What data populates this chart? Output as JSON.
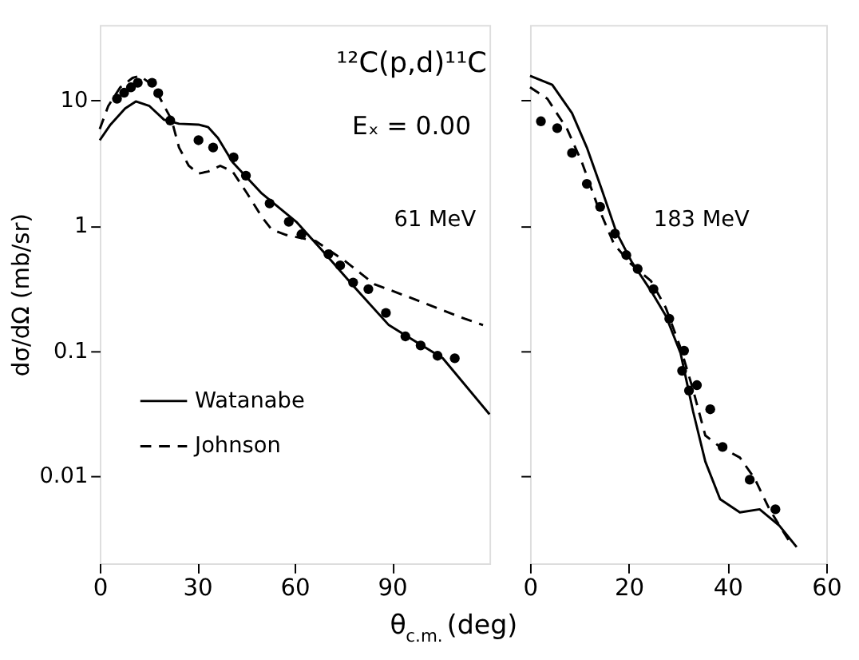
{
  "chart_data": [
    {
      "type": "line",
      "xlabel": "θ$_{c.m.}$ (deg)",
      "ylabel": "dσ/dΩ (mb/sr)",
      "annotations": [
        "¹²C(p,d)¹¹C",
        "Eₓ = 0.00",
        "61 MeV"
      ],
      "xlim": [
        0,
        120
      ],
      "xticks": [
        0,
        30,
        60,
        90
      ],
      "ylim": [
        0.002,
        40
      ],
      "yticks": [
        0.01,
        0.1,
        1,
        10
      ],
      "log": "y",
      "grid": false,
      "legend": "bottom left",
      "series": [
        {
          "name": "Watanabe",
          "color": "#000000",
          "line_style": "solid",
          "marker": "none",
          "x": [
            0,
            3.3,
            7.8,
            11.1,
            15.3,
            19.8,
            24.4,
            30.4,
            33.4,
            36.4,
            40.9,
            49.9,
            60.5,
            69.5,
            78.5,
            89,
            105.6,
            120
          ],
          "values": [
            4.8,
            6.4,
            8.6,
            9.8,
            9.0,
            7.0,
            6.5,
            6.4,
            6.1,
            5.0,
            3.2,
            1.8,
            1.07,
            0.59,
            0.32,
            0.16,
            0.087,
            0.031
          ]
        },
        {
          "name": "Johnson",
          "color": "#000000",
          "line_style": "dashed",
          "marker": "none",
          "x": [
            0,
            2.6,
            6.3,
            10.1,
            12.3,
            15.3,
            18.3,
            22.1,
            24.4,
            27.4,
            30.4,
            33.4,
            37.1,
            40.9,
            45.4,
            49.9,
            52.9,
            57.4,
            66.5,
            75.5,
            84.5,
            96.5,
            105.6,
            112.4,
            118
          ],
          "values": [
            5.9,
            9.0,
            12.7,
            15.1,
            15.7,
            13.8,
            10.7,
            7.0,
            4.2,
            3.0,
            2.6,
            2.7,
            3.0,
            2.7,
            1.8,
            1.17,
            0.93,
            0.84,
            0.75,
            0.52,
            0.34,
            0.26,
            0.21,
            0.18,
            0.16
          ]
        },
        {
          "type": "scatter",
          "color": "#000000",
          "marker": "circle",
          "x": [
            5.3,
            7.5,
            9.6,
            11.7,
            16.1,
            18.0,
            21.7,
            30.4,
            34.9,
            41.2,
            45.0,
            52.3,
            58.2,
            62.1,
            70.4,
            74.0,
            78.0,
            82.7,
            88.1,
            94.1,
            98.8,
            104,
            109.3
          ],
          "values": [
            10.3,
            11.5,
            12.7,
            13.8,
            13.8,
            11.4,
            6.9,
            4.8,
            4.2,
            3.5,
            2.5,
            1.5,
            1.07,
            0.85,
            0.59,
            0.48,
            0.35,
            0.31,
            0.2,
            0.13,
            0.11,
            0.091,
            0.087
          ]
        }
      ]
    },
    {
      "type": "line",
      "annotations": [
        "183 MeV"
      ],
      "xlim": [
        0,
        60
      ],
      "xticks": [
        0,
        20,
        40,
        60
      ],
      "ylim": [
        0.002,
        40
      ],
      "yticks": [
        0.01,
        0.1,
        1,
        10
      ],
      "log": "y",
      "grid": false,
      "tick_labels": "x",
      "series": [
        {
          "color": "#000000",
          "line_style": "solid",
          "marker": "none",
          "x": [
            0,
            4.5,
            8.5,
            11.5,
            14.5,
            17.5,
            20.5,
            24.5,
            27.5,
            30.5,
            33,
            35.5,
            38.5,
            42.5,
            46.5,
            50.5,
            54
          ],
          "values": [
            15.7,
            13.3,
            7.9,
            4.2,
            1.95,
            0.88,
            0.52,
            0.3,
            0.19,
            0.095,
            0.033,
            0.013,
            0.0065,
            0.0051,
            0.0054,
            0.004,
            0.0027
          ]
        },
        {
          "color": "#000000",
          "line_style": "dashed",
          "marker": "none",
          "x": [
            0,
            3.5,
            7.5,
            10.5,
            13.5,
            17,
            20.5,
            24.5,
            27.5,
            30.5,
            33,
            35.5,
            38.5,
            42.5,
            45.5,
            48.5,
            52.5
          ],
          "values": [
            12.7,
            10.3,
            5.9,
            3.2,
            1.5,
            0.71,
            0.49,
            0.36,
            0.22,
            0.105,
            0.049,
            0.021,
            0.017,
            0.014,
            0.0095,
            0.0054,
            0.003
          ]
        },
        {
          "type": "scatter",
          "color": "#000000",
          "marker": "circle",
          "x": [
            2.2,
            5.5,
            8.5,
            11.5,
            14.2,
            17.2,
            19.5,
            21.8,
            25.0,
            28.2,
            31.2,
            30.8,
            32.2,
            33.8,
            36.5,
            39,
            44.5,
            49.7
          ],
          "values": [
            6.8,
            6.0,
            3.8,
            2.15,
            1.41,
            0.86,
            0.58,
            0.45,
            0.31,
            0.18,
            0.1,
            0.069,
            0.048,
            0.053,
            0.034,
            0.017,
            0.0093,
            0.0054
          ]
        }
      ]
    }
  ]
}
